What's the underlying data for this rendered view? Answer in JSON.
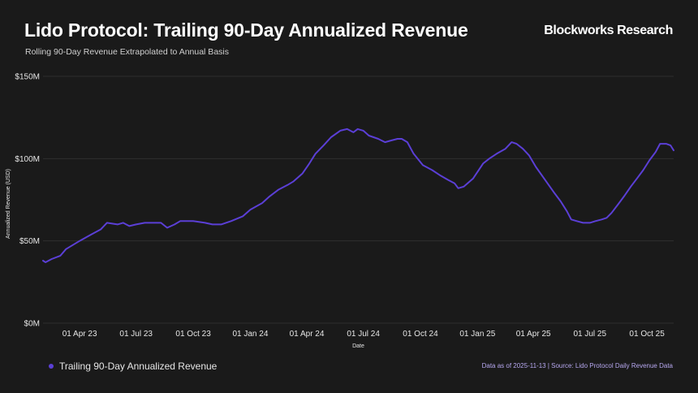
{
  "header": {
    "title": "Lido Protocol: Trailing 90-Day Annualized Revenue",
    "subtitle": "Rolling 90-Day Revenue Extrapolated to Annual Basis",
    "brand": "Blockworks Research"
  },
  "footer": {
    "legend_label": "Trailing 90-Day Annualized Revenue",
    "note": "Data as of 2025-11-13 | Source: Lido Protocol Daily Revenue Data"
  },
  "colors": {
    "background": "#1a1a1a",
    "line": "#5b3fd6",
    "grid": "#2f2f2f",
    "note": "#b7a8f0"
  },
  "chart_data": {
    "type": "line",
    "title": "Lido Protocol: Trailing 90-Day Annualized Revenue",
    "subtitle": "Rolling 90-Day Revenue Extrapolated to Annual Basis",
    "xlabel": "Date",
    "ylabel": "Annualized Revenue (USD)",
    "ylim": [
      0,
      150
    ],
    "xlim": [
      "2023-02-01",
      "2025-11-13"
    ],
    "y_ticks": [
      {
        "value": 0,
        "label": "$0M"
      },
      {
        "value": 50,
        "label": "$50M"
      },
      {
        "value": 100,
        "label": "$100M"
      },
      {
        "value": 150,
        "label": "$150M"
      }
    ],
    "x_ticks": [
      {
        "date": "2023-04-01",
        "label": "01 Apr 23"
      },
      {
        "date": "2023-07-01",
        "label": "01 Jul 23"
      },
      {
        "date": "2023-10-01",
        "label": "01 Oct 23"
      },
      {
        "date": "2024-01-01",
        "label": "01 Jan 24"
      },
      {
        "date": "2024-04-01",
        "label": "01 Apr 24"
      },
      {
        "date": "2024-07-01",
        "label": "01 Jul 24"
      },
      {
        "date": "2024-10-01",
        "label": "01 Oct 24"
      },
      {
        "date": "2025-01-01",
        "label": "01 Jan 25"
      },
      {
        "date": "2025-04-01",
        "label": "01 Apr 25"
      },
      {
        "date": "2025-07-01",
        "label": "01 Jul 25"
      },
      {
        "date": "2025-10-01",
        "label": "01 Oct 25"
      }
    ],
    "grid": true,
    "legend_position": "bottom-left",
    "series": [
      {
        "name": "Trailing 90-Day Annualized Revenue",
        "color": "#5b3fd6",
        "points": [
          [
            "2023-02-01",
            38
          ],
          [
            "2023-02-05",
            37
          ],
          [
            "2023-02-15",
            39
          ],
          [
            "2023-03-01",
            41
          ],
          [
            "2023-03-10",
            45
          ],
          [
            "2023-04-01",
            50
          ],
          [
            "2023-04-20",
            54
          ],
          [
            "2023-05-05",
            57
          ],
          [
            "2023-05-15",
            61
          ],
          [
            "2023-06-01",
            60
          ],
          [
            "2023-06-10",
            61
          ],
          [
            "2023-06-20",
            59
          ],
          [
            "2023-07-01",
            60
          ],
          [
            "2023-07-15",
            61
          ],
          [
            "2023-08-01",
            61
          ],
          [
            "2023-08-10",
            61
          ],
          [
            "2023-08-20",
            58
          ],
          [
            "2023-09-01",
            60
          ],
          [
            "2023-09-10",
            62
          ],
          [
            "2023-10-01",
            62
          ],
          [
            "2023-10-20",
            61
          ],
          [
            "2023-11-01",
            60
          ],
          [
            "2023-11-15",
            60
          ],
          [
            "2023-12-01",
            62
          ],
          [
            "2023-12-20",
            65
          ],
          [
            "2024-01-01",
            69
          ],
          [
            "2024-01-20",
            73
          ],
          [
            "2024-02-01",
            77
          ],
          [
            "2024-02-15",
            81
          ],
          [
            "2024-03-01",
            84
          ],
          [
            "2024-03-10",
            86
          ],
          [
            "2024-03-25",
            91
          ],
          [
            "2024-04-05",
            97
          ],
          [
            "2024-04-15",
            103
          ],
          [
            "2024-04-28",
            108
          ],
          [
            "2024-05-10",
            113
          ],
          [
            "2024-05-25",
            117
          ],
          [
            "2024-06-05",
            118
          ],
          [
            "2024-06-15",
            116
          ],
          [
            "2024-06-22",
            118
          ],
          [
            "2024-07-01",
            117
          ],
          [
            "2024-07-10",
            114
          ],
          [
            "2024-07-25",
            112
          ],
          [
            "2024-08-05",
            110
          ],
          [
            "2024-08-15",
            111
          ],
          [
            "2024-08-25",
            112
          ],
          [
            "2024-09-01",
            112
          ],
          [
            "2024-09-10",
            110
          ],
          [
            "2024-09-20",
            103
          ],
          [
            "2024-10-05",
            96
          ],
          [
            "2024-10-20",
            93
          ],
          [
            "2024-11-01",
            90
          ],
          [
            "2024-11-15",
            87
          ],
          [
            "2024-11-25",
            85
          ],
          [
            "2024-12-01",
            82
          ],
          [
            "2024-12-10",
            83
          ],
          [
            "2024-12-25",
            88
          ],
          [
            "2025-01-10",
            97
          ],
          [
            "2025-01-20",
            100
          ],
          [
            "2025-02-01",
            103
          ],
          [
            "2025-02-15",
            106
          ],
          [
            "2025-02-25",
            110
          ],
          [
            "2025-03-05",
            109
          ],
          [
            "2025-03-15",
            106
          ],
          [
            "2025-03-25",
            102
          ],
          [
            "2025-04-05",
            95
          ],
          [
            "2025-04-20",
            87
          ],
          [
            "2025-05-05",
            79
          ],
          [
            "2025-05-15",
            74
          ],
          [
            "2025-05-25",
            68
          ],
          [
            "2025-06-01",
            63
          ],
          [
            "2025-06-10",
            62
          ],
          [
            "2025-06-20",
            61
          ],
          [
            "2025-07-01",
            61
          ],
          [
            "2025-07-10",
            62
          ],
          [
            "2025-07-20",
            63
          ],
          [
            "2025-07-28",
            64
          ],
          [
            "2025-08-05",
            67
          ],
          [
            "2025-08-15",
            72
          ],
          [
            "2025-08-25",
            77
          ],
          [
            "2025-09-05",
            83
          ],
          [
            "2025-09-15",
            88
          ],
          [
            "2025-09-25",
            93
          ],
          [
            "2025-10-05",
            99
          ],
          [
            "2025-10-15",
            104
          ],
          [
            "2025-10-22",
            109
          ],
          [
            "2025-11-01",
            109
          ],
          [
            "2025-11-08",
            108
          ],
          [
            "2025-11-13",
            105
          ]
        ]
      }
    ]
  }
}
